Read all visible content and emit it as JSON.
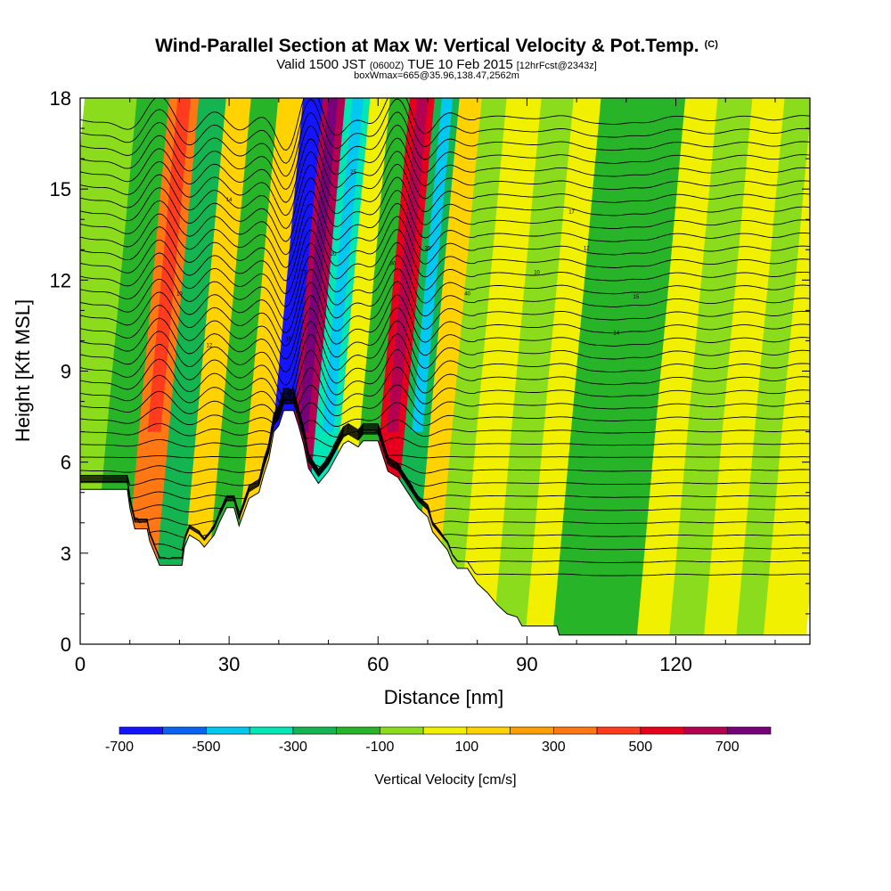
{
  "chart_data": {
    "type": "heatmap",
    "title": "Wind-Parallel Section at Max W: Vertical Velocity & Pot.Temp.",
    "title_mark": "(C)",
    "subtitle_parts": [
      "Valid 1500 JST",
      "(0600Z)",
      "TUE 10 Feb 2015",
      "[12hrFcst@2343z]"
    ],
    "subtitle2": "boxWmax=665@35.96,138.47,2562m",
    "xlabel": "Distance [nm]",
    "ylabel": "Height [Kft MSL]",
    "xlim": [
      0,
      147
    ],
    "ylim": [
      0,
      18
    ],
    "x_ticks": [
      0,
      30,
      60,
      90,
      120
    ],
    "y_ticks": [
      0,
      3,
      6,
      9,
      12,
      15,
      18
    ],
    "x_tick_labels": [
      "0",
      "30",
      "60",
      "90",
      "120"
    ],
    "y_tick_labels": [
      "0",
      "3",
      "6",
      "9",
      "12",
      "15",
      "18"
    ],
    "colorbar": {
      "label": "Vertical Velocity [cm/s]",
      "levels": [
        -700,
        -600,
        -500,
        -400,
        -300,
        -200,
        -100,
        0,
        100,
        200,
        300,
        400,
        500,
        600,
        700,
        800
      ],
      "tick_labels": [
        "-700",
        "-500",
        "-300",
        "-100",
        "100",
        "300",
        "500",
        "700"
      ],
      "tick_values": [
        -700,
        -500,
        -300,
        -100,
        100,
        300,
        500,
        700
      ],
      "colors": [
        "#1414ff",
        "#0a64f0",
        "#00c8f0",
        "#00e6b4",
        "#14b450",
        "#28b428",
        "#8cdc1e",
        "#f0f000",
        "#ffd200",
        "#ffa000",
        "#ff7814",
        "#ff3c1e",
        "#e6001e",
        "#b40050",
        "#780078"
      ]
    },
    "vertical_velocity_columns": [
      {
        "x": 3,
        "w_cm_s": -60
      },
      {
        "x": 10,
        "w_cm_s": -180
      },
      {
        "x": 16,
        "w_cm_s": 330
      },
      {
        "x": 22,
        "w_cm_s": -240
      },
      {
        "x": 27,
        "w_cm_s": 140
      },
      {
        "x": 32,
        "w_cm_s": -200
      },
      {
        "x": 38,
        "w_cm_s": 120
      },
      {
        "x": 42,
        "w_cm_s": -650
      },
      {
        "x": 46,
        "w_cm_s": 650
      },
      {
        "x": 51,
        "w_cm_s": -330
      },
      {
        "x": 56,
        "w_cm_s": 90
      },
      {
        "x": 59,
        "w_cm_s": -180
      },
      {
        "x": 64,
        "w_cm_s": 520
      },
      {
        "x": 69,
        "w_cm_s": -300
      },
      {
        "x": 74,
        "w_cm_s": 120
      },
      {
        "x": 78,
        "w_cm_s": -60
      },
      {
        "x": 84,
        "w_cm_s": 60
      },
      {
        "x": 92,
        "w_cm_s": -40
      },
      {
        "x": 97,
        "w_cm_s": 80
      },
      {
        "x": 103,
        "w_cm_s": -140
      },
      {
        "x": 108,
        "w_cm_s": -180
      },
      {
        "x": 114,
        "w_cm_s": -150
      },
      {
        "x": 120,
        "w_cm_s": 60
      },
      {
        "x": 127,
        "w_cm_s": -100
      },
      {
        "x": 134,
        "w_cm_s": 60
      },
      {
        "x": 140,
        "w_cm_s": -90
      },
      {
        "x": 145,
        "w_cm_s": 80
      }
    ],
    "terrain": [
      [
        0,
        5.1
      ],
      [
        9.5,
        5.1
      ],
      [
        10,
        4.5
      ],
      [
        11,
        3.8
      ],
      [
        13.5,
        3.8
      ],
      [
        14,
        3.4
      ],
      [
        16,
        2.6
      ],
      [
        20.5,
        2.6
      ],
      [
        21,
        3.2
      ],
      [
        22,
        3.6
      ],
      [
        24,
        3.4
      ],
      [
        25,
        3.2
      ],
      [
        27,
        3.6
      ],
      [
        28,
        4.0
      ],
      [
        29.5,
        4.5
      ],
      [
        31,
        4.5
      ],
      [
        32,
        3.9
      ],
      [
        34,
        4.8
      ],
      [
        36,
        5.0
      ],
      [
        37,
        5.6
      ],
      [
        38,
        6.1
      ],
      [
        39,
        7.0
      ],
      [
        40,
        7.2
      ],
      [
        41,
        7.7
      ],
      [
        43,
        7.7
      ],
      [
        44,
        7.2
      ],
      [
        45,
        6.6
      ],
      [
        46,
        5.8
      ],
      [
        48,
        5.3
      ],
      [
        50,
        5.7
      ],
      [
        51,
        6.0
      ],
      [
        53,
        6.6
      ],
      [
        54,
        6.7
      ],
      [
        56,
        6.5
      ],
      [
        57,
        6.7
      ],
      [
        60,
        6.7
      ],
      [
        62,
        5.7
      ],
      [
        64,
        5.5
      ],
      [
        66,
        5.0
      ],
      [
        68,
        4.5
      ],
      [
        70,
        4.2
      ],
      [
        71,
        3.7
      ],
      [
        73,
        3.3
      ],
      [
        74,
        3.1
      ],
      [
        75,
        2.7
      ],
      [
        76,
        2.5
      ],
      [
        78,
        2.5
      ],
      [
        80,
        2.0
      ],
      [
        82,
        1.7
      ],
      [
        84,
        1.3
      ],
      [
        86,
        1.0
      ],
      [
        88,
        0.9
      ],
      [
        89,
        0.6
      ],
      [
        96,
        0.6
      ],
      [
        96.5,
        0.3
      ],
      [
        147,
        0.3
      ]
    ],
    "theta_contours": {
      "count": 36,
      "base_k": 2.3,
      "spacing_k": 0.43
    },
    "annotations": [
      "10",
      "12",
      "14",
      "15",
      "17",
      "20",
      "25",
      "30",
      "35",
      "40"
    ]
  }
}
